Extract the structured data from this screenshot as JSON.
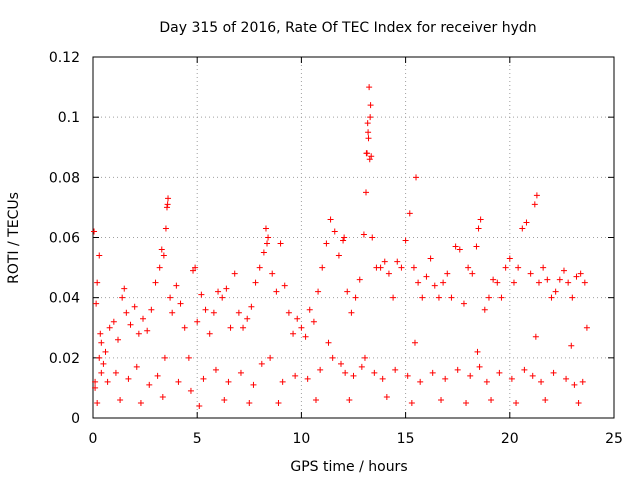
{
  "chart_data": {
    "type": "scatter",
    "title": "Day 315 of 2016, Rate Of TEC Index for receiver hydn",
    "xlabel": "GPS time / hours",
    "ylabel": "ROTI / TECUs",
    "xlim": [
      0,
      25
    ],
    "ylim": [
      0,
      0.12
    ],
    "xticks": [
      0,
      5,
      10,
      15,
      20,
      25
    ],
    "xtick_labels": [
      "0",
      "5",
      "10",
      "15",
      "20",
      "25"
    ],
    "yticks": [
      0,
      0.02,
      0.04,
      0.06,
      0.08,
      0.1,
      0.12
    ],
    "ytick_labels": [
      "0",
      "0.02",
      "0.04",
      "0.06",
      "0.08",
      "0.1",
      "0.12"
    ],
    "grid": true,
    "marker": "+",
    "color": "#ff0000",
    "series": [
      {
        "name": "ROTI",
        "x": [
          0.05,
          0.1,
          0.15,
          0.2,
          0.3,
          0.35,
          0.4,
          0.5,
          0.6,
          0.8,
          1.0,
          1.2,
          1.4,
          1.5,
          1.6,
          1.8,
          2.0,
          2.2,
          2.4,
          2.6,
          2.8,
          3.0,
          3.2,
          3.3,
          3.4,
          3.5,
          3.55,
          3.6,
          3.7,
          3.8,
          4.0,
          4.2,
          4.4,
          4.6,
          4.8,
          4.9,
          5.0,
          5.2,
          5.4,
          5.6,
          5.8,
          6.0,
          6.2,
          6.4,
          6.6,
          6.8,
          7.0,
          7.2,
          7.4,
          7.6,
          7.8,
          8.0,
          8.2,
          8.3,
          8.4,
          8.6,
          8.8,
          9.0,
          9.2,
          9.4,
          9.6,
          9.8,
          10.0,
          10.2,
          10.4,
          10.6,
          10.8,
          11.0,
          11.2,
          11.4,
          11.6,
          11.8,
          12.0,
          12.2,
          12.4,
          12.6,
          12.8,
          13.0,
          13.1,
          13.15,
          13.2,
          13.25,
          13.3,
          13.35,
          13.4,
          13.6,
          13.8,
          14.0,
          14.2,
          14.4,
          14.6,
          14.8,
          15.0,
          15.2,
          15.4,
          15.5,
          15.6,
          15.8,
          16.0,
          16.2,
          16.4,
          16.6,
          16.8,
          17.0,
          17.2,
          17.4,
          17.6,
          17.8,
          18.0,
          18.2,
          18.4,
          18.5,
          18.6,
          18.8,
          19.0,
          19.2,
          19.4,
          19.6,
          19.8,
          20.0,
          20.2,
          20.4,
          20.6,
          20.8,
          21.0,
          21.2,
          21.3,
          21.4,
          21.6,
          21.8,
          22.0,
          22.2,
          22.4,
          22.6,
          22.8,
          23.0,
          23.2,
          23.4,
          23.6,
          23.7,
          0.1,
          0.3,
          0.7,
          1.1,
          1.7,
          2.1,
          2.7,
          3.1,
          3.45,
          4.1,
          4.7,
          5.3,
          5.9,
          6.5,
          7.1,
          7.7,
          8.1,
          8.5,
          9.1,
          9.7,
          10.3,
          10.9,
          11.5,
          11.9,
          12.1,
          12.5,
          12.9,
          13.05,
          13.22,
          13.28,
          13.5,
          13.9,
          14.5,
          15.1,
          15.7,
          16.3,
          16.9,
          17.5,
          18.1,
          18.55,
          18.9,
          19.5,
          20.1,
          20.7,
          21.1,
          21.5,
          22.1,
          22.7,
          23.1,
          23.5,
          0.2,
          1.3,
          2.3,
          3.35,
          5.1,
          6.3,
          7.5,
          8.9,
          10.7,
          12.3,
          13.12,
          13.32,
          14.1,
          15.3,
          16.7,
          17.9,
          19.1,
          20.3,
          21.7,
          23.3,
          0.4,
          3.58,
          8.35,
          11.3,
          12.05,
          13.18,
          15.45,
          18.45,
          21.25,
          22.95
        ],
        "y": [
          0.062,
          0.012,
          0.038,
          0.045,
          0.054,
          0.028,
          0.015,
          0.018,
          0.022,
          0.03,
          0.032,
          0.026,
          0.04,
          0.043,
          0.035,
          0.031,
          0.037,
          0.028,
          0.033,
          0.029,
          0.036,
          0.045,
          0.05,
          0.056,
          0.054,
          0.063,
          0.07,
          0.073,
          0.04,
          0.035,
          0.044,
          0.038,
          0.03,
          0.02,
          0.049,
          0.05,
          0.032,
          0.041,
          0.036,
          0.028,
          0.035,
          0.042,
          0.04,
          0.043,
          0.03,
          0.048,
          0.035,
          0.03,
          0.033,
          0.037,
          0.045,
          0.05,
          0.055,
          0.063,
          0.06,
          0.048,
          0.042,
          0.058,
          0.044,
          0.035,
          0.028,
          0.033,
          0.03,
          0.027,
          0.036,
          0.032,
          0.042,
          0.05,
          0.058,
          0.066,
          0.062,
          0.054,
          0.059,
          0.042,
          0.035,
          0.04,
          0.046,
          0.061,
          0.075,
          0.088,
          0.095,
          0.11,
          0.1,
          0.087,
          0.06,
          0.05,
          0.05,
          0.052,
          0.048,
          0.04,
          0.052,
          0.05,
          0.059,
          0.068,
          0.05,
          0.08,
          0.045,
          0.04,
          0.047,
          0.053,
          0.044,
          0.04,
          0.045,
          0.048,
          0.04,
          0.057,
          0.056,
          0.038,
          0.05,
          0.048,
          0.057,
          0.063,
          0.066,
          0.036,
          0.04,
          0.046,
          0.045,
          0.04,
          0.05,
          0.053,
          0.045,
          0.05,
          0.063,
          0.065,
          0.048,
          0.071,
          0.074,
          0.045,
          0.05,
          0.046,
          0.04,
          0.042,
          0.046,
          0.049,
          0.045,
          0.04,
          0.047,
          0.048,
          0.045,
          0.03,
          0.01,
          0.02,
          0.012,
          0.015,
          0.013,
          0.017,
          0.011,
          0.014,
          0.02,
          0.012,
          0.009,
          0.013,
          0.016,
          0.012,
          0.015,
          0.011,
          0.018,
          0.02,
          0.012,
          0.014,
          0.013,
          0.016,
          0.02,
          0.018,
          0.015,
          0.014,
          0.017,
          0.02,
          0.093,
          0.086,
          0.015,
          0.013,
          0.016,
          0.014,
          0.012,
          0.015,
          0.013,
          0.016,
          0.014,
          0.017,
          0.012,
          0.015,
          0.013,
          0.016,
          0.014,
          0.012,
          0.015,
          0.013,
          0.011,
          0.012,
          0.005,
          0.006,
          0.005,
          0.007,
          0.004,
          0.006,
          0.005,
          0.005,
          0.006,
          0.006,
          0.088,
          0.104,
          0.007,
          0.005,
          0.006,
          0.005,
          0.006,
          0.005,
          0.006,
          0.005,
          0.025,
          0.071,
          0.058,
          0.025,
          0.06,
          0.098,
          0.025,
          0.022,
          0.027,
          0.024
        ]
      }
    ]
  }
}
